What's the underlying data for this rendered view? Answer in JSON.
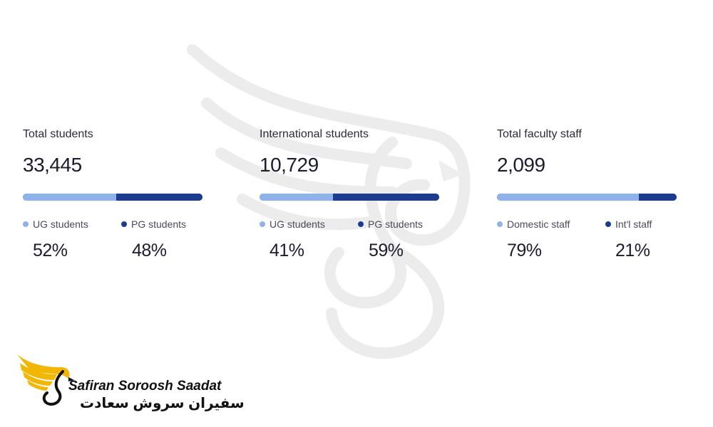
{
  "colors": {
    "light_segment": "#8fb3e8",
    "dark_segment": "#1c3d8f",
    "watermark": "#f0f0f0",
    "logo_gold": "#f2b705",
    "text": "#1c1c2e"
  },
  "stats": [
    {
      "label": "Total students",
      "total": "33,445",
      "segments": [
        {
          "label": "UG students",
          "percent_text": "52%",
          "value": 52
        },
        {
          "label": "PG students",
          "percent_text": "48%",
          "value": 48
        }
      ]
    },
    {
      "label": "International students",
      "total": "10,729",
      "segments": [
        {
          "label": "UG students",
          "percent_text": "41%",
          "value": 41
        },
        {
          "label": "PG students",
          "percent_text": "59%",
          "value": 59
        }
      ]
    },
    {
      "label": "Total faculty staff",
      "total": "2,099",
      "segments": [
        {
          "label": "Domestic staff",
          "percent_text": "79%",
          "value": 79
        },
        {
          "label": "Int'l staff",
          "percent_text": "21%",
          "value": 21
        }
      ]
    }
  ],
  "logo": {
    "title": "Safiran Soroosh Saadat",
    "subtitle": "سفیران سروش سعادت",
    "icon": "phoenix-wing-icon"
  }
}
